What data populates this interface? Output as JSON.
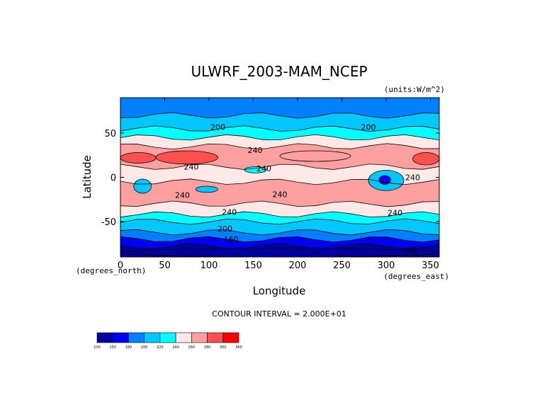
{
  "chart_data": {
    "type": "heatmap",
    "title": "ULWRF_2003-MAM_NCEP",
    "units_label": "(units:W/m^2)",
    "xlabel": "Longitude",
    "ylabel": "Latitude",
    "x_unit_label": "(degrees_east)",
    "y_unit_label": "(degrees_north)",
    "xlim": [
      0,
      360
    ],
    "ylim": [
      -90,
      90
    ],
    "x_ticks": [
      0,
      50,
      100,
      150,
      200,
      250,
      300,
      350
    ],
    "y_ticks": [
      -50,
      0,
      50
    ],
    "contour_interval_text": "CONTOUR INTERVAL = 2.000E+01",
    "contour_labels": [
      {
        "text": "200",
        "lon": 110,
        "lat": 57
      },
      {
        "text": "200",
        "lon": 280,
        "lat": 57
      },
      {
        "text": "240",
        "lon": 152,
        "lat": 31
      },
      {
        "text": "240",
        "lon": 162,
        "lat": 10
      },
      {
        "text": "240",
        "lon": 80,
        "lat": 12
      },
      {
        "text": "240",
        "lon": 330,
        "lat": 0
      },
      {
        "text": "240",
        "lon": 70,
        "lat": -20
      },
      {
        "text": "240",
        "lon": 180,
        "lat": -19
      },
      {
        "text": "240",
        "lon": 123,
        "lat": -39
      },
      {
        "text": "240",
        "lon": 310,
        "lat": -40
      },
      {
        "text": "200",
        "lon": 118,
        "lat": -58
      },
      {
        "text": "160",
        "lon": 125,
        "lat": -70
      },
      {
        "text": "160",
        "lon": 327,
        "lat": -82
      }
    ],
    "colorbar": {
      "levels": [
        100,
        150,
        180,
        200,
        220,
        240,
        260,
        280,
        300,
        360
      ],
      "colors": [
        "#0000a0",
        "#0000f0",
        "#0080ff",
        "#00c8ff",
        "#00ffff",
        "#ffe8e8",
        "#ffa0a0",
        "#ff5050",
        "#ff0000"
      ],
      "tick_labels": [
        "100",
        "150",
        "180",
        "200",
        "220",
        "240",
        "260",
        "280",
        "300",
        "360"
      ]
    },
    "bands": [
      {
        "lat_top": 90,
        "lat_bottom": 70,
        "level": "180-200"
      },
      {
        "lat_top": 70,
        "lat_bottom": 55,
        "level": "200-220"
      },
      {
        "lat_top": 55,
        "lat_bottom": 45,
        "level": "220-240"
      },
      {
        "lat_top": 45,
        "lat_bottom": 35,
        "level": "240-260"
      },
      {
        "lat_top": 35,
        "lat_bottom": 12,
        "level": "260-280"
      },
      {
        "lat_top": 12,
        "lat_bottom": -5,
        "level": "240-260"
      },
      {
        "lat_top": -5,
        "lat_bottom": -30,
        "level": "260-280"
      },
      {
        "lat_top": -30,
        "lat_bottom": -42,
        "level": "240-260"
      },
      {
        "lat_top": -42,
        "lat_bottom": -50,
        "level": "220-240"
      },
      {
        "lat_top": -50,
        "lat_bottom": -62,
        "level": "200-220"
      },
      {
        "lat_top": -62,
        "lat_bottom": -70,
        "level": "180-200"
      },
      {
        "lat_top": -70,
        "lat_bottom": -78,
        "level": "150-180"
      },
      {
        "lat_top": -78,
        "lat_bottom": -90,
        "level": "100-150"
      }
    ],
    "patches": [
      {
        "lon": [
          40,
          110
        ],
        "lat": [
          30,
          15
        ],
        "level": "280-300"
      },
      {
        "lon": [
          0,
          40
        ],
        "lat": [
          28,
          16
        ],
        "level": "280-300"
      },
      {
        "lon": [
          330,
          360
        ],
        "lat": [
          28,
          14
        ],
        "level": "280-300"
      },
      {
        "lon": [
          180,
          260
        ],
        "lat": [
          30,
          18
        ],
        "level": "260-280"
      },
      {
        "lon": [
          280,
          320
        ],
        "lat": [
          8,
          -15
        ],
        "level": "200-220"
      },
      {
        "lon": [
          292,
          305
        ],
        "lat": [
          2,
          -8
        ],
        "level": "150-180"
      },
      {
        "lon": [
          15,
          35
        ],
        "lat": [
          -2,
          -18
        ],
        "level": "200-220"
      },
      {
        "lon": [
          85,
          110
        ],
        "lat": [
          -10,
          -17
        ],
        "level": "200-220"
      },
      {
        "lon": [
          140,
          165
        ],
        "lat": [
          12,
          5
        ],
        "level": "220-240"
      },
      {
        "lon": [
          0,
          360
        ],
        "lat": [
          -80,
          -90
        ],
        "level": "100-150"
      }
    ]
  }
}
